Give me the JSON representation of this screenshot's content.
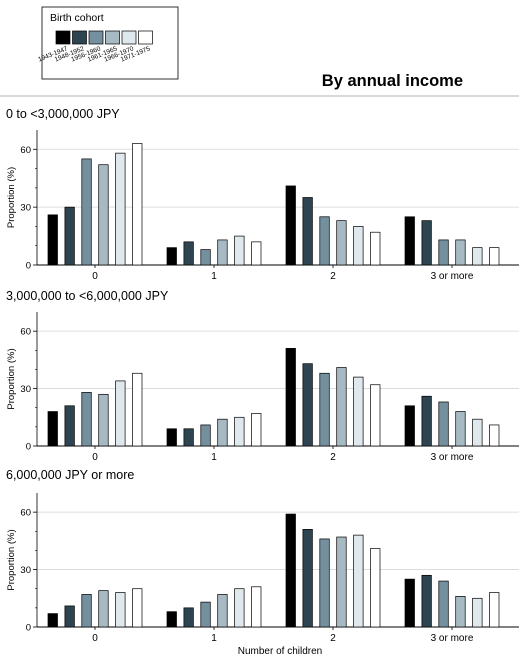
{
  "figure_title": "By annual income",
  "legend": {
    "title": "Birth cohort",
    "entries": [
      "1943-1947",
      "1948-1952",
      "1956-1960",
      "1961-1965",
      "1966-1970",
      "1971-1975"
    ],
    "colors": [
      "#000000",
      "#2e4450",
      "#74909f",
      "#a7bac4",
      "#dfe8ec",
      "#ffffff"
    ]
  },
  "chart_data": [
    {
      "type": "bar",
      "title": "0 to <3,000,000 JPY",
      "xlabel": "",
      "ylabel": "Proportion (%)",
      "ylim": [
        0,
        70
      ],
      "yticks": [
        0,
        30,
        60
      ],
      "grid": true,
      "categories": [
        "0",
        "1",
        "2",
        "3 or more"
      ],
      "series": [
        {
          "name": "1943-1947",
          "values": [
            26,
            9,
            41,
            25
          ]
        },
        {
          "name": "1948-1952",
          "values": [
            30,
            12,
            35,
            23
          ]
        },
        {
          "name": "1956-1960",
          "values": [
            55,
            8,
            25,
            13
          ]
        },
        {
          "name": "1961-1965",
          "values": [
            52,
            13,
            23,
            13
          ]
        },
        {
          "name": "1966-1970",
          "values": [
            58,
            15,
            20,
            9
          ]
        },
        {
          "name": "1971-1975",
          "values": [
            63,
            12,
            17,
            9
          ]
        }
      ]
    },
    {
      "type": "bar",
      "title": "3,000,000 to <6,000,000 JPY",
      "xlabel": "",
      "ylabel": "Proportion (%)",
      "ylim": [
        0,
        70
      ],
      "yticks": [
        0,
        30,
        60
      ],
      "grid": true,
      "categories": [
        "0",
        "1",
        "2",
        "3 or more"
      ],
      "series": [
        {
          "name": "1943-1947",
          "values": [
            18,
            9,
            51,
            21
          ]
        },
        {
          "name": "1948-1952",
          "values": [
            21,
            9,
            43,
            26
          ]
        },
        {
          "name": "1956-1960",
          "values": [
            28,
            11,
            38,
            23
          ]
        },
        {
          "name": "1961-1965",
          "values": [
            27,
            14,
            41,
            18
          ]
        },
        {
          "name": "1966-1970",
          "values": [
            34,
            15,
            36,
            14
          ]
        },
        {
          "name": "1971-1975",
          "values": [
            38,
            17,
            32,
            11
          ]
        }
      ]
    },
    {
      "type": "bar",
      "title": "6,000,000 JPY or more",
      "xlabel": "Number of children",
      "ylabel": "Proportion (%)",
      "ylim": [
        0,
        70
      ],
      "yticks": [
        0,
        30,
        60
      ],
      "grid": true,
      "categories": [
        "0",
        "1",
        "2",
        "3 or more"
      ],
      "series": [
        {
          "name": "1943-1947",
          "values": [
            7,
            8,
            59,
            25
          ]
        },
        {
          "name": "1948-1952",
          "values": [
            11,
            10,
            51,
            27
          ]
        },
        {
          "name": "1956-1960",
          "values": [
            17,
            13,
            46,
            24
          ]
        },
        {
          "name": "1961-1965",
          "values": [
            19,
            17,
            47,
            16
          ]
        },
        {
          "name": "1966-1970",
          "values": [
            18,
            20,
            48,
            15
          ]
        },
        {
          "name": "1971-1975",
          "values": [
            20,
            21,
            41,
            18
          ]
        }
      ]
    }
  ]
}
